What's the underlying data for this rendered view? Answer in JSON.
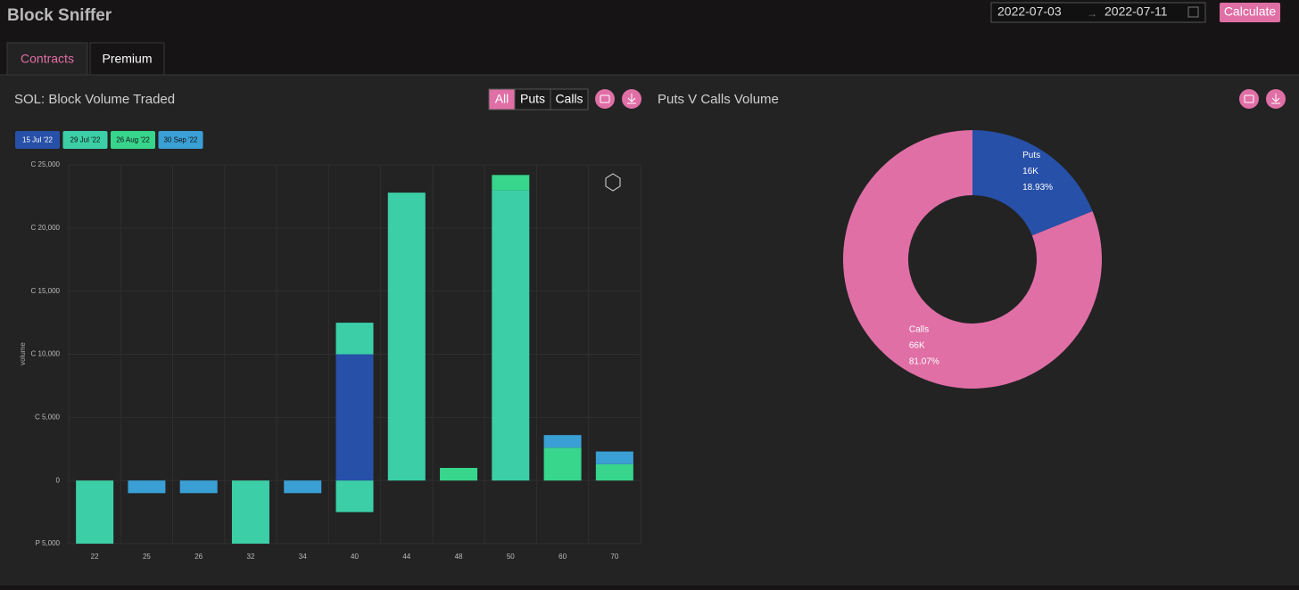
{
  "header": {
    "title": "Block Sniffer",
    "date_from": "2022-07-03",
    "date_to": "2022-07-11",
    "button": "Calculate"
  },
  "tabs": [
    "Contracts",
    "Premium"
  ],
  "active_tab": 0,
  "filters": [
    "All",
    "Puts",
    "Calls"
  ],
  "active_filter": 0,
  "chart_data": [
    {
      "type": "bar",
      "stacked": true,
      "title": "SOL: Block Volume Traded",
      "y_label": "volume",
      "categories": [
        "22",
        "25",
        "26",
        "32",
        "34",
        "40",
        "44",
        "48",
        "50",
        "60",
        "70"
      ],
      "series": [
        {
          "name": "15 Jul '22",
          "color": "#2750a8",
          "calls": [
            null,
            null,
            null,
            null,
            null,
            10000,
            null,
            null,
            null,
            null,
            null
          ],
          "puts": [
            null,
            null,
            null,
            null,
            null,
            null,
            null,
            null,
            null,
            null,
            null
          ]
        },
        {
          "name": "29 Jul '22",
          "color": "#3ccfa7",
          "calls": [
            null,
            null,
            null,
            null,
            null,
            2500,
            22800,
            null,
            23000,
            null,
            null
          ],
          "puts": [
            -5000,
            null,
            null,
            -5000,
            null,
            -2500,
            null,
            null,
            null,
            null,
            null
          ]
        },
        {
          "name": "26 Aug '22",
          "color": "#38d58c",
          "calls": [
            null,
            null,
            null,
            null,
            null,
            null,
            null,
            1000,
            1200,
            2600,
            1300
          ],
          "puts": [
            null,
            null,
            null,
            null,
            null,
            null,
            null,
            null,
            null,
            null,
            null
          ]
        },
        {
          "name": "30 Sep '22",
          "color": "#3a9fd5",
          "calls": [
            null,
            null,
            null,
            null,
            null,
            null,
            null,
            null,
            null,
            1000,
            1000
          ],
          "puts": [
            null,
            -1000,
            -1000,
            null,
            -1000,
            null,
            null,
            null,
            null,
            null,
            null
          ]
        }
      ],
      "ylim": [
        -5000,
        25000
      ],
      "yticks": [
        {
          "value": -5000,
          "label": "P 5,000"
        },
        0,
        {
          "value": 5000,
          "label": "C 5,000"
        },
        {
          "value": 10000,
          "label": "C 10,000"
        },
        {
          "value": 15000,
          "label": "C 15,000"
        },
        {
          "value": 20000,
          "label": "C 20,000"
        },
        {
          "value": 25000,
          "label": "C 25,000"
        }
      ],
      "grid": true
    },
    {
      "type": "pie",
      "donut": true,
      "title": "Puts V Calls Volume",
      "categories": [
        "Puts",
        "Calls"
      ],
      "colors": [
        "#2750a8",
        "#e06fa6"
      ],
      "values": [
        18.93,
        81.07
      ],
      "value_labels": [
        "18.93%",
        "81.07%"
      ],
      "amounts": [
        16000,
        66000
      ],
      "amount_labels": [
        "16K",
        "66K"
      ]
    }
  ]
}
